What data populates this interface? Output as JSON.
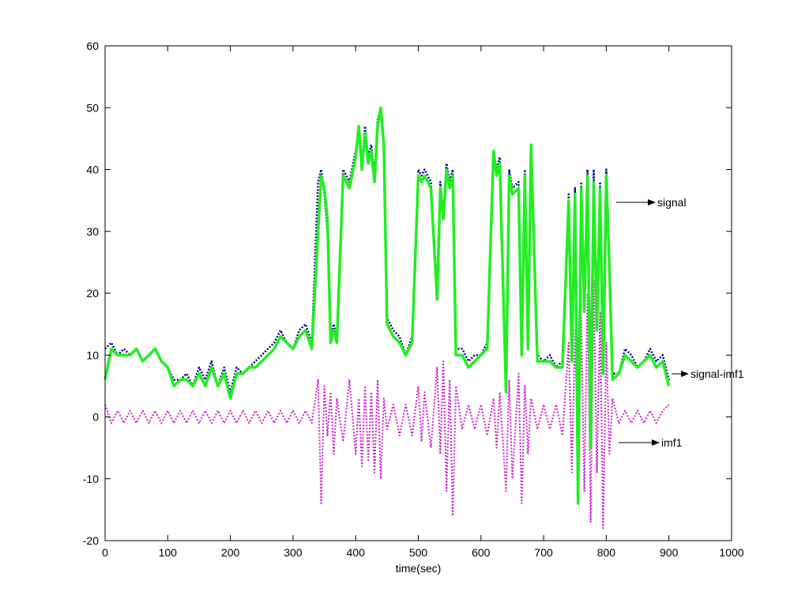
{
  "chart_data": {
    "type": "line",
    "title": "",
    "xlabel": "time(sec)",
    "ylabel": "",
    "xlim": [
      0,
      1000
    ],
    "ylim": [
      -20,
      60
    ],
    "xticks": [
      0,
      100,
      200,
      300,
      400,
      500,
      600,
      700,
      800,
      900,
      1000
    ],
    "yticks": [
      -20,
      -10,
      0,
      10,
      20,
      30,
      40,
      50,
      60
    ],
    "grid": false,
    "legend": "none",
    "series": [
      {
        "key": "signal",
        "color": "#000080",
        "style": "dotted",
        "x": [
          0,
          10,
          20,
          30,
          40,
          50,
          60,
          70,
          80,
          90,
          100,
          110,
          120,
          130,
          140,
          150,
          160,
          170,
          180,
          190,
          200,
          210,
          220,
          230,
          240,
          250,
          260,
          270,
          280,
          290,
          300,
          310,
          320,
          330,
          340,
          345,
          350,
          355,
          360,
          365,
          370,
          380,
          390,
          400,
          405,
          410,
          415,
          420,
          425,
          430,
          435,
          440,
          445,
          450,
          460,
          470,
          480,
          490,
          500,
          505,
          510,
          520,
          530,
          535,
          540,
          545,
          550,
          555,
          560,
          570,
          580,
          590,
          600,
          610,
          620,
          625,
          630,
          640,
          645,
          650,
          660,
          665,
          670,
          675,
          680,
          690,
          700,
          710,
          720,
          730,
          740,
          745,
          750,
          755,
          760,
          765,
          770,
          775,
          780,
          785,
          790,
          795,
          800,
          805,
          810,
          820,
          830,
          840,
          850,
          860,
          870,
          880,
          890,
          900
        ],
        "y": [
          11,
          12,
          10,
          11,
          10,
          11,
          9,
          10,
          11,
          9,
          8,
          6,
          6,
          7,
          5,
          8,
          6,
          9,
          5,
          8,
          4,
          8,
          7,
          8,
          9,
          10,
          11,
          12,
          14,
          12,
          11,
          14,
          15,
          12,
          38,
          40,
          36,
          30,
          13,
          15,
          13,
          40,
          38,
          43,
          46,
          41,
          47,
          42,
          44,
          39,
          48,
          50,
          43,
          16,
          14,
          13,
          10,
          13,
          40,
          39,
          40,
          38,
          19,
          38,
          33,
          41,
          38,
          40,
          11,
          11,
          9,
          10,
          10,
          12,
          43,
          40,
          42,
          5,
          40,
          37,
          38,
          11,
          40,
          12,
          44,
          10,
          9,
          10,
          8,
          9,
          36,
          10,
          37,
          0,
          38,
          18,
          40,
          5,
          40,
          15,
          38,
          8,
          40,
          25,
          7,
          7,
          11,
          10,
          8,
          9,
          11,
          9,
          10,
          6
        ]
      },
      {
        "key": "signal-imf1",
        "color": "#22ee22",
        "style": "solid",
        "x": [
          0,
          10,
          20,
          30,
          40,
          50,
          60,
          70,
          80,
          90,
          100,
          110,
          120,
          130,
          140,
          150,
          160,
          170,
          180,
          190,
          200,
          210,
          220,
          230,
          240,
          250,
          260,
          270,
          280,
          290,
          300,
          310,
          320,
          330,
          340,
          345,
          350,
          355,
          360,
          365,
          370,
          380,
          390,
          400,
          405,
          410,
          415,
          420,
          425,
          430,
          435,
          440,
          445,
          450,
          460,
          470,
          480,
          490,
          500,
          505,
          510,
          520,
          530,
          535,
          540,
          545,
          550,
          555,
          560,
          570,
          580,
          590,
          600,
          610,
          620,
          625,
          630,
          640,
          645,
          650,
          660,
          665,
          670,
          675,
          680,
          690,
          700,
          710,
          720,
          730,
          740,
          745,
          750,
          755,
          760,
          765,
          770,
          775,
          780,
          785,
          790,
          795,
          800,
          805,
          810,
          820,
          830,
          840,
          850,
          860,
          870,
          880,
          890,
          900
        ],
        "y": [
          6,
          11,
          10,
          10,
          10,
          11,
          9,
          10,
          11,
          9,
          8,
          5,
          6,
          6,
          5,
          7,
          5,
          8,
          5,
          7,
          3,
          7,
          7,
          8,
          8,
          9,
          10,
          11,
          13,
          12,
          11,
          13,
          14,
          11,
          30,
          39,
          37,
          32,
          12,
          14,
          12,
          39,
          37,
          42,
          47,
          40,
          46,
          41,
          43,
          38,
          47,
          50,
          44,
          15,
          13,
          12,
          10,
          12,
          39,
          38,
          39,
          37,
          19,
          37,
          32,
          40,
          37,
          39,
          10,
          10,
          8,
          9,
          10,
          11,
          43,
          39,
          41,
          4,
          39,
          36,
          37,
          10,
          39,
          11,
          44,
          9,
          9,
          9,
          8,
          8,
          35,
          9,
          36,
          -14,
          37,
          17,
          39,
          -5,
          38,
          14,
          37,
          7,
          39,
          24,
          6,
          7,
          10,
          9,
          8,
          9,
          10,
          8,
          9,
          5
        ]
      },
      {
        "key": "imf1",
        "color": "#cc22cc",
        "style": "dotted",
        "x": [
          0,
          10,
          20,
          30,
          40,
          50,
          60,
          70,
          80,
          90,
          100,
          110,
          120,
          130,
          140,
          150,
          160,
          170,
          180,
          190,
          200,
          210,
          220,
          230,
          240,
          250,
          260,
          270,
          280,
          290,
          300,
          310,
          320,
          330,
          340,
          345,
          350,
          355,
          360,
          365,
          370,
          380,
          390,
          400,
          405,
          410,
          415,
          420,
          425,
          430,
          435,
          440,
          445,
          450,
          460,
          470,
          480,
          490,
          500,
          505,
          510,
          520,
          530,
          535,
          540,
          545,
          550,
          555,
          560,
          570,
          580,
          590,
          600,
          610,
          620,
          625,
          630,
          640,
          645,
          650,
          660,
          665,
          670,
          675,
          680,
          690,
          700,
          710,
          720,
          730,
          740,
          745,
          750,
          755,
          760,
          765,
          770,
          775,
          780,
          785,
          790,
          795,
          800,
          805,
          810,
          820,
          830,
          840,
          850,
          860,
          870,
          880,
          890,
          900
        ],
        "y": [
          2,
          -1,
          1,
          -1,
          1,
          -1,
          1,
          -1,
          1,
          -1,
          1,
          -1,
          1,
          -1,
          1,
          -1,
          1,
          -1,
          1,
          -1,
          1,
          -1,
          1,
          -1,
          1,
          -1,
          1,
          -1,
          1,
          -1,
          1,
          -1,
          1,
          -1,
          6,
          -14,
          5,
          -3,
          4,
          -6,
          3,
          -4,
          6,
          -6,
          3,
          -8,
          5,
          -7,
          4,
          -9,
          6,
          -10,
          3,
          -2,
          2,
          -3,
          2,
          -3,
          5,
          -4,
          4,
          -5,
          8,
          -6,
          9,
          -12,
          6,
          -16,
          5,
          -2,
          2,
          -2,
          2,
          -3,
          3,
          -5,
          4,
          -12,
          6,
          -10,
          7,
          -14,
          5,
          -6,
          3,
          -2,
          2,
          -2,
          2,
          -3,
          12,
          -9,
          14,
          -8,
          16,
          -12,
          20,
          -17,
          22,
          -9,
          17,
          -18,
          12,
          -6,
          3,
          -1,
          1,
          -1,
          1,
          -1,
          1,
          -1,
          1,
          2
        ]
      }
    ],
    "annotations": [
      {
        "text": "signal",
        "series": "signal"
      },
      {
        "text": "signal-imf1",
        "series": "signal-imf1"
      },
      {
        "text": "imf1",
        "series": "imf1"
      }
    ]
  }
}
